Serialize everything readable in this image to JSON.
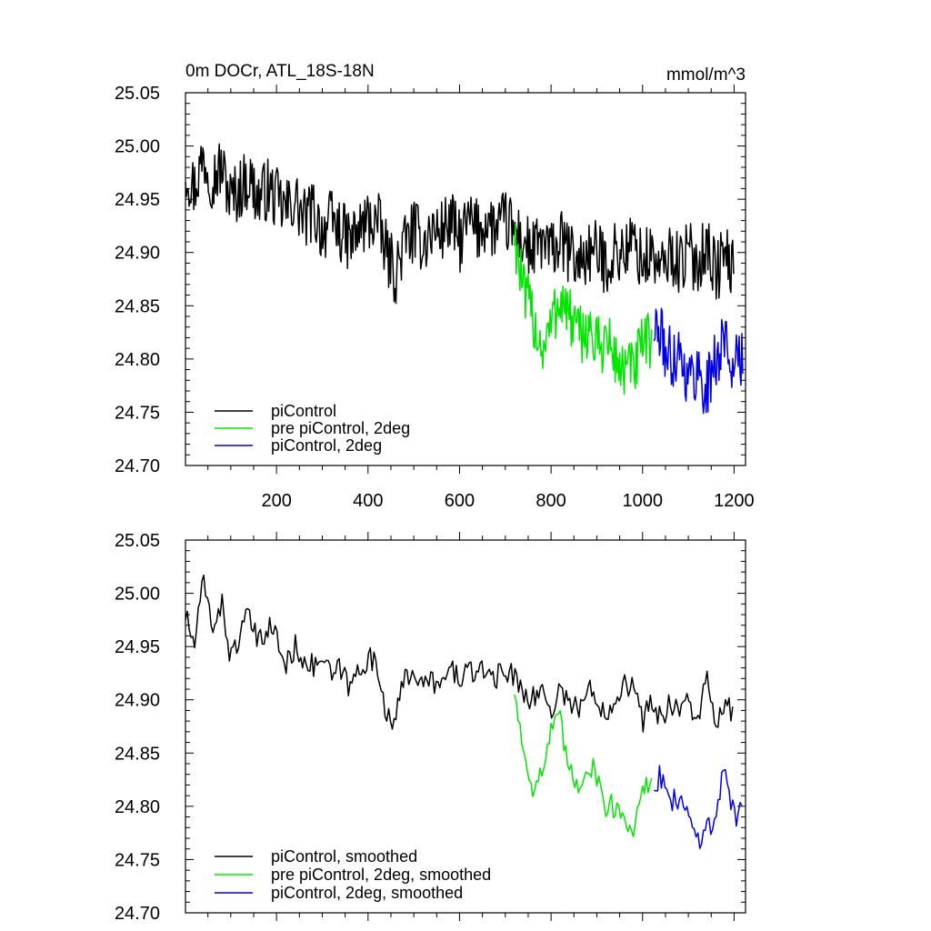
{
  "chart_data": [
    {
      "type": "line",
      "title": "0m DOCr, ATL_18S-18N",
      "units": "mmol/m^3",
      "xlim": [
        1,
        1225
      ],
      "ylim": [
        24.7,
        25.05
      ],
      "x_ticks": [
        200,
        400,
        600,
        800,
        1000,
        1200
      ],
      "y_ticks": [
        24.7,
        24.75,
        24.8,
        24.85,
        24.9,
        24.95,
        25.0,
        25.05
      ],
      "y_tick_labels": [
        "24.70",
        "24.75",
        "24.80",
        "24.85",
        "24.90",
        "24.95",
        "25.00",
        "25.05"
      ],
      "legend_position": "bottom-left",
      "series": [
        {
          "name": "piControl",
          "color": "#000000",
          "x": [
            1,
            20,
            40,
            60,
            80,
            100,
            120,
            140,
            160,
            180,
            200,
            220,
            240,
            260,
            280,
            300,
            320,
            340,
            360,
            380,
            400,
            420,
            440,
            460,
            480,
            500,
            520,
            540,
            560,
            580,
            600,
            620,
            640,
            660,
            680,
            700,
            720,
            740,
            760,
            780,
            800,
            820,
            840,
            860,
            880,
            900,
            920,
            940,
            960,
            980,
            1000,
            1020,
            1040,
            1060,
            1080,
            1100,
            1120,
            1140,
            1160,
            1180,
            1200
          ],
          "y": [
            24.98,
            24.96,
            24.99,
            24.97,
            24.98,
            24.95,
            24.96,
            24.97,
            24.95,
            24.96,
            24.95,
            24.94,
            24.95,
            24.93,
            24.94,
            24.92,
            24.93,
            24.92,
            24.91,
            24.92,
            24.93,
            24.93,
            24.9,
            24.88,
            24.91,
            24.92,
            24.91,
            24.92,
            24.92,
            24.93,
            24.91,
            24.93,
            24.92,
            24.93,
            24.92,
            24.93,
            24.92,
            24.91,
            24.9,
            24.91,
            24.9,
            24.91,
            24.9,
            24.89,
            24.9,
            24.9,
            24.89,
            24.9,
            24.9,
            24.91,
            24.89,
            24.9,
            24.88,
            24.9,
            24.89,
            24.9,
            24.89,
            24.91,
            24.88,
            24.9,
            24.88
          ]
        },
        {
          "name": "pre piControl, 2deg",
          "color": "#00e600",
          "x": [
            720,
            740,
            760,
            780,
            800,
            820,
            840,
            860,
            880,
            900,
            920,
            940,
            960,
            980,
            1000,
            1020
          ],
          "y": [
            24.92,
            24.86,
            24.84,
            24.81,
            24.83,
            24.86,
            24.84,
            24.82,
            24.83,
            24.81,
            24.82,
            24.8,
            24.79,
            24.79,
            24.81,
            24.82
          ]
        },
        {
          "name": "piControl, 2deg",
          "color": "#0000e6",
          "x": [
            1025,
            1040,
            1060,
            1080,
            1100,
            1120,
            1140,
            1160,
            1180,
            1200,
            1220
          ],
          "y": [
            24.83,
            24.82,
            24.8,
            24.81,
            24.78,
            24.79,
            24.77,
            24.8,
            24.82,
            24.79,
            24.8
          ]
        }
      ]
    },
    {
      "type": "line",
      "title": "",
      "xlim": [
        1,
        1225
      ],
      "ylim": [
        24.7,
        25.05
      ],
      "y_ticks": [
        24.7,
        24.75,
        24.8,
        24.85,
        24.9,
        24.95,
        25.0,
        25.05
      ],
      "y_tick_labels": [
        "24.70",
        "24.75",
        "24.80",
        "24.85",
        "24.90",
        "24.95",
        "25.00",
        "25.05"
      ],
      "legend_position": "bottom-left",
      "series": [
        {
          "name": "piControl, smoothed",
          "color": "#000000",
          "x": [
            1,
            20,
            40,
            60,
            80,
            100,
            120,
            140,
            160,
            180,
            200,
            220,
            240,
            260,
            280,
            300,
            320,
            340,
            360,
            380,
            400,
            420,
            440,
            460,
            480,
            500,
            520,
            540,
            560,
            580,
            600,
            620,
            640,
            660,
            680,
            700,
            720,
            740,
            760,
            780,
            800,
            820,
            840,
            860,
            880,
            900,
            920,
            940,
            960,
            980,
            1000,
            1020,
            1040,
            1060,
            1080,
            1100,
            1120,
            1140,
            1160,
            1180,
            1200
          ],
          "y": [
            24.98,
            24.95,
            25.01,
            24.97,
            24.99,
            24.94,
            24.96,
            24.98,
            24.95,
            24.97,
            24.96,
            24.93,
            24.95,
            24.94,
            24.93,
            24.94,
            24.92,
            24.93,
            24.91,
            24.93,
            24.94,
            24.93,
            24.89,
            24.88,
            24.92,
            24.93,
            24.91,
            24.92,
            24.91,
            24.93,
            24.92,
            24.93,
            24.92,
            24.93,
            24.92,
            24.93,
            24.92,
            24.91,
            24.9,
            24.91,
            24.89,
            24.91,
            24.9,
            24.89,
            24.91,
            24.9,
            24.89,
            24.9,
            24.92,
            24.91,
            24.88,
            24.9,
            24.88,
            24.9,
            24.89,
            24.9,
            24.88,
            24.92,
            24.87,
            24.9,
            24.88
          ]
        },
        {
          "name": "pre piControl, 2deg, smoothed",
          "color": "#00e600",
          "x": [
            720,
            740,
            760,
            780,
            800,
            820,
            840,
            860,
            880,
            900,
            920,
            940,
            960,
            980,
            1000,
            1020
          ],
          "y": [
            24.91,
            24.85,
            24.82,
            24.83,
            24.87,
            24.88,
            24.83,
            24.82,
            24.84,
            24.83,
            24.8,
            24.8,
            24.79,
            24.78,
            24.81,
            24.83
          ]
        },
        {
          "name": "piControl, 2deg, smoothed",
          "color": "#0000e6",
          "x": [
            1025,
            1040,
            1060,
            1080,
            1100,
            1120,
            1140,
            1160,
            1180,
            1200,
            1220
          ],
          "y": [
            24.82,
            24.83,
            24.8,
            24.81,
            24.79,
            24.77,
            24.78,
            24.79,
            24.84,
            24.79,
            24.8
          ]
        }
      ]
    }
  ]
}
